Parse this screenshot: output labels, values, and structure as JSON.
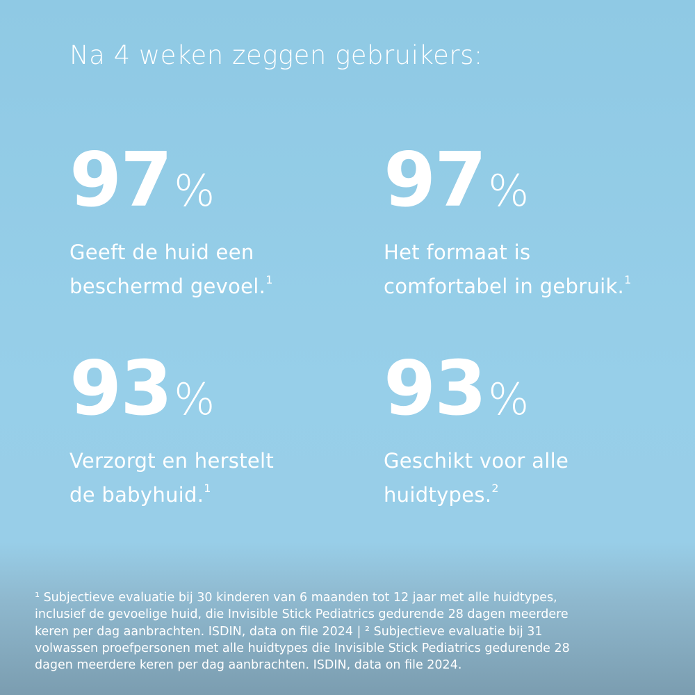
{
  "header": {
    "title": "Na 4 weken zeggen gebruikers:"
  },
  "stats": [
    {
      "value": "97",
      "unit": "%",
      "lines": [
        "Geeft de huid een",
        "beschermd gevoel."
      ],
      "note": "1"
    },
    {
      "value": "97",
      "unit": "%",
      "lines": [
        "Het formaat is",
        "comfortabel in gebruik."
      ],
      "note": "1"
    },
    {
      "value": "93",
      "unit": "%",
      "lines": [
        "Verzorgt en herstelt",
        "de babyhuid."
      ],
      "note": "1"
    },
    {
      "value": "93",
      "unit": "%",
      "lines": [
        "Geschikt voor alle",
        "huidtypes."
      ],
      "note": "2"
    }
  ],
  "footnote": {
    "lines": [
      "¹ Subjectieve evaluatie bij 30 kinderen van 6 maanden tot 12 jaar met alle huidtypes,",
      "inclusief de gevoelige huid, die Invisible Stick Pediatrics gedurende 28 dagen meerdere",
      "keren per dag aanbrachten. ISDIN, data on file 2024 | ² Subjectieve evaluatie bij 31",
      "volwassen proefpersonen met alle huidtypes die Invisible Stick Pediatrics gedurende 28",
      "dagen meerdere keren per dag aanbrachten. ISDIN, data on file 2024."
    ]
  }
}
